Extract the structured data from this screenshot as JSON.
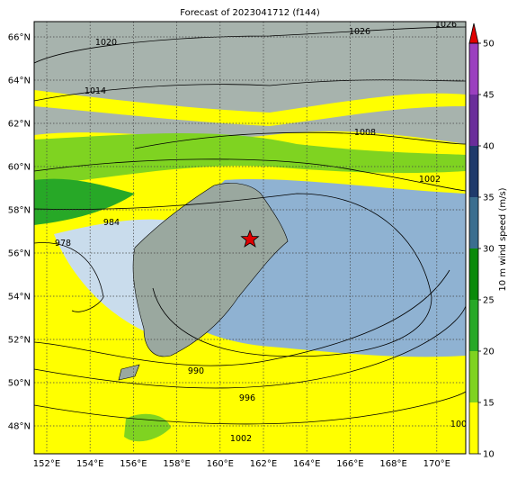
{
  "map": {
    "title": "Forecast of 2023041712 (f144)",
    "lon_ticks": [
      {
        "value": 152,
        "label": "152°E"
      },
      {
        "value": 154,
        "label": "154°E"
      },
      {
        "value": 156,
        "label": "156°E"
      },
      {
        "value": 158,
        "label": "158°E"
      },
      {
        "value": 160,
        "label": "160°E"
      },
      {
        "value": 162,
        "label": "162°E"
      },
      {
        "value": 164,
        "label": "164°E"
      },
      {
        "value": 166,
        "label": "166°E"
      },
      {
        "value": 168,
        "label": "168°E"
      },
      {
        "value": 170,
        "label": "170°E"
      }
    ],
    "lat_ticks": [
      {
        "value": 66,
        "label": "66°N"
      },
      {
        "value": 64,
        "label": "64°N"
      },
      {
        "value": 62,
        "label": "62°N"
      },
      {
        "value": 60,
        "label": "60°N"
      },
      {
        "value": 58,
        "label": "58°N"
      },
      {
        "value": 56,
        "label": "56°N"
      },
      {
        "value": 54,
        "label": "54°N"
      },
      {
        "value": 52,
        "label": "52°N"
      },
      {
        "value": 50,
        "label": "50°N"
      },
      {
        "value": 48,
        "label": "48°N"
      }
    ],
    "contour_labels": [
      "1020",
      "1026",
      "1026",
      "1014",
      "1008",
      "1002",
      "984",
      "978",
      "990",
      "996",
      "1002",
      "100"
    ],
    "colorbar": {
      "label": "10 m wind speed (m/s)",
      "ticks": [
        10,
        15,
        20,
        25,
        30,
        35,
        40,
        45,
        50
      ],
      "colors": [
        "#ffff00",
        "#7fd321",
        "#27a827",
        "#0a8a0a",
        "#3b6e8f",
        "#1f3a6b",
        "#6a2d9a",
        "#9b3fbf"
      ],
      "extend_color": "#e00000"
    }
  }
}
